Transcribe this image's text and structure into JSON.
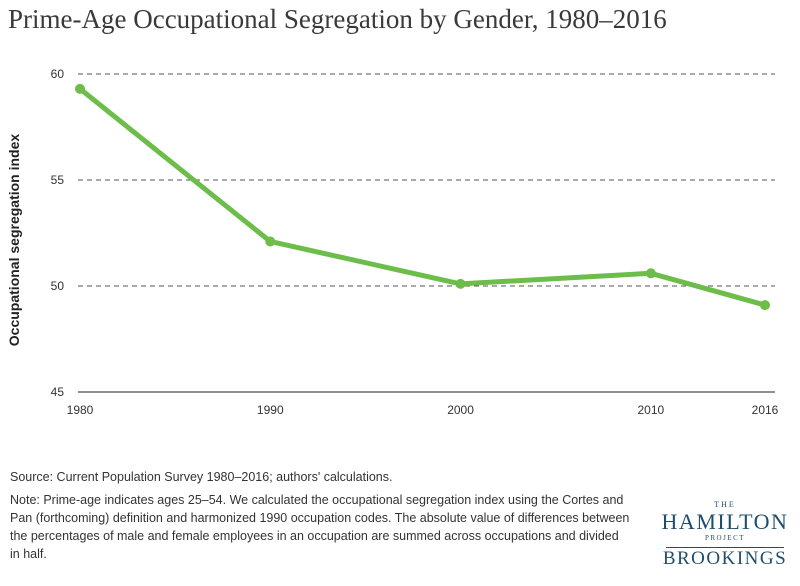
{
  "title": "Prime-Age Occupational Segregation by Gender, 1980–2016",
  "chart_data": {
    "type": "line",
    "x": [
      1980,
      1990,
      2000,
      2010,
      2016
    ],
    "x_ticks": [
      "1980",
      "1990",
      "2000",
      "2010",
      "2016"
    ],
    "series": [
      {
        "values": [
          59.3,
          52.1,
          50.1,
          50.6,
          49.1
        ],
        "color": "#6cbd4a"
      }
    ],
    "ylabel": "Occupational segregation index",
    "xlabel": "",
    "ylim": [
      45,
      60
    ],
    "y_ticks": [
      45,
      50,
      55,
      60
    ],
    "grid": "horizontal dashed"
  },
  "source": "Source: Current Population Survey 1980–2016; authors' calculations.",
  "note": "Note: Prime-age indicates ages 25–54. We calculated the occupational segregation index using the Cortes and Pan (forthcoming) definition and harmonized 1990 occupation codes. The absolute value of differences between the percentages of male and female employees in an occupation are summed across occupations and divided in half.",
  "logo": {
    "the": "THE",
    "hamilton": "HAMILTON",
    "project": "PROJECT",
    "brookings": "BROOKINGS"
  }
}
